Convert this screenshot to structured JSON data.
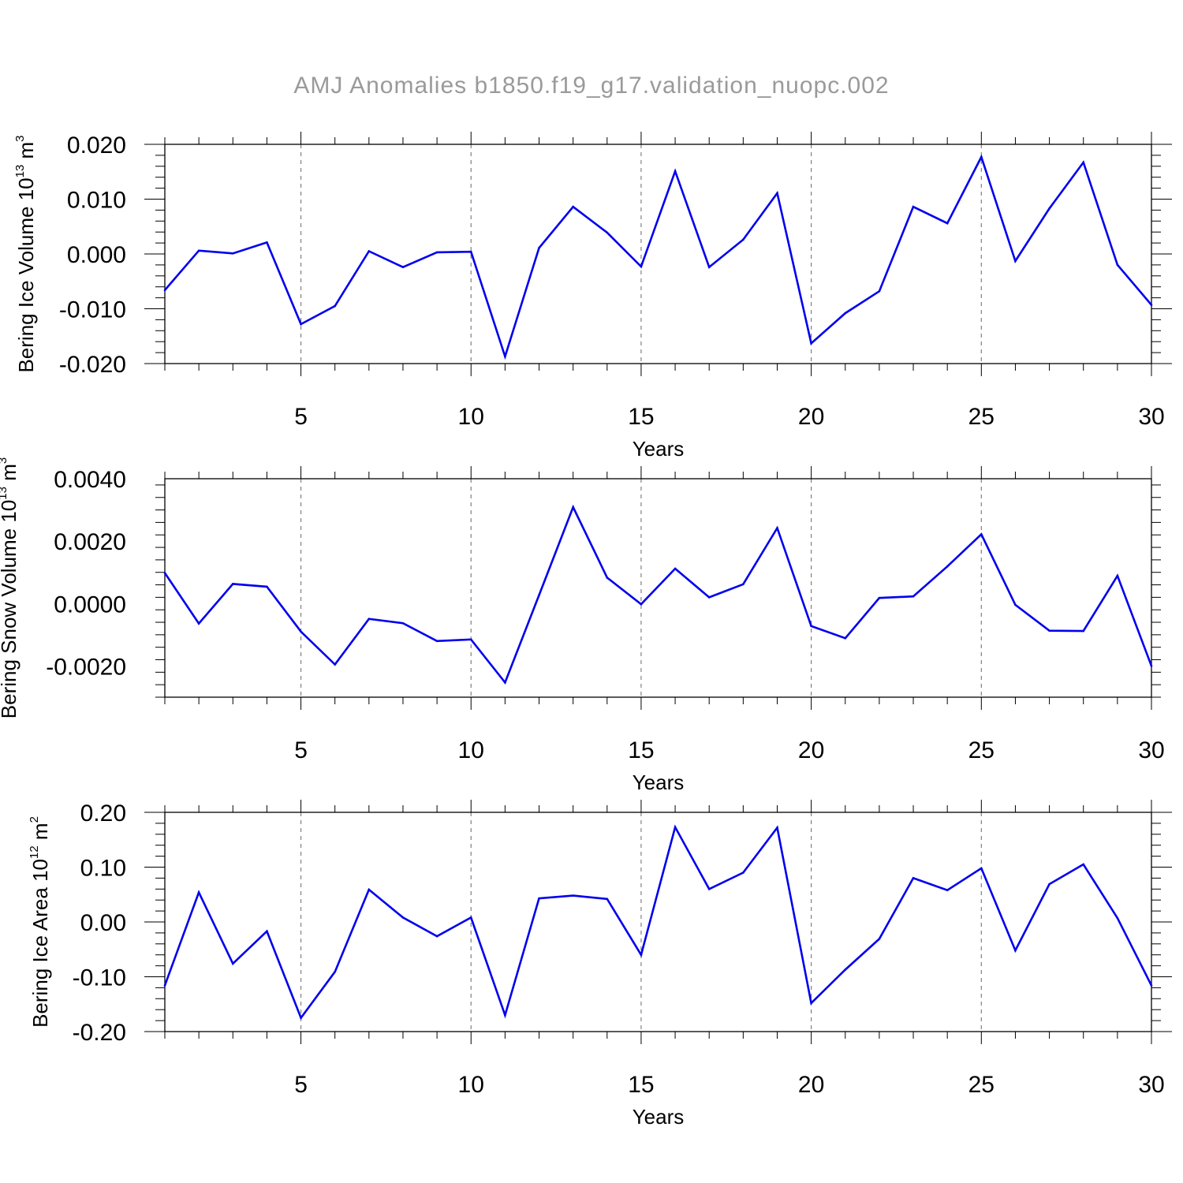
{
  "title": "AMJ Anomalies b1850.f19_g17.validation_nuopc.002",
  "colors": {
    "line": "#0000ee",
    "frame": "#000000",
    "grid": "#808080",
    "title": "#9a9a9a"
  },
  "chart_data": [
    {
      "type": "line",
      "ylabel": {
        "base": "Bering Ice Volume 10",
        "exponent": "13",
        "unit": " m",
        "unit_exponent": "3"
      },
      "xlabel": "Years",
      "xlim": [
        1,
        30
      ],
      "ylim": [
        -0.02,
        0.02
      ],
      "xticks": [
        "5",
        "10",
        "15",
        "20",
        "25",
        "30"
      ],
      "yticks": [
        "0.020",
        "0.010",
        "0.000",
        "-0.010",
        "-0.020"
      ],
      "ytick_values": [
        0.02,
        0.01,
        0.0,
        -0.01,
        -0.02
      ],
      "grid_x": [
        5,
        10,
        15,
        20,
        25
      ],
      "series": [
        {
          "name": "Bering Ice Volume",
          "x": [
            1,
            2,
            3,
            4,
            5,
            6,
            7,
            8,
            9,
            10,
            11,
            12,
            13,
            14,
            15,
            16,
            17,
            18,
            19,
            20,
            21,
            22,
            23,
            24,
            25,
            26,
            27,
            28,
            29,
            30
          ],
          "values": [
            -0.0066,
            0.0006,
            0.0001,
            0.0021,
            -0.0128,
            -0.0095,
            0.0005,
            -0.0024,
            0.0003,
            0.0004,
            -0.0187,
            0.0011,
            0.0086,
            0.0039,
            -0.0023,
            0.0151,
            -0.0024,
            0.0026,
            0.0111,
            -0.0163,
            -0.0108,
            -0.0068,
            0.0086,
            0.0056,
            0.0177,
            -0.0013,
            0.0083,
            0.0167,
            -0.002,
            -0.0093
          ]
        }
      ]
    },
    {
      "type": "line",
      "ylabel": {
        "base": "Bering Snow Volume 10",
        "exponent": "13",
        "unit": " m",
        "unit_exponent": "3"
      },
      "xlabel": "Years",
      "xlim": [
        1,
        30
      ],
      "ylim": [
        -0.003,
        0.004
      ],
      "xticks": [
        "5",
        "10",
        "15",
        "20",
        "25",
        "30"
      ],
      "yticks": [
        "0.0040",
        "0.0020",
        "0.0000",
        "-0.0020"
      ],
      "ytick_values": [
        0.004,
        0.002,
        0.0,
        -0.002
      ],
      "grid_x": [
        5,
        10,
        15,
        20,
        25
      ],
      "series": [
        {
          "name": "Bering Snow Volume",
          "x": [
            1,
            2,
            3,
            4,
            5,
            6,
            7,
            8,
            9,
            10,
            11,
            12,
            13,
            14,
            15,
            16,
            17,
            18,
            19,
            20,
            21,
            22,
            23,
            24,
            25,
            26,
            27,
            28,
            29,
            30
          ],
          "values": [
            0.00098,
            -0.00064,
            0.00063,
            0.00054,
            -0.0009,
            -0.00195,
            -0.00049,
            -0.00063,
            -0.0012,
            -0.00115,
            -0.00253,
            0.00027,
            0.00309,
            0.00083,
            -2e-05,
            0.00112,
            0.0002,
            0.00062,
            0.00242,
            -0.00072,
            -0.00111,
            0.00018,
            0.00023,
            0.00119,
            0.00222,
            -4e-05,
            -0.00087,
            -0.00088,
            0.00089,
            -0.002
          ]
        }
      ]
    },
    {
      "type": "line",
      "ylabel": {
        "base": "Bering Ice Area 10",
        "exponent": "12",
        "unit": " m",
        "unit_exponent": "2"
      },
      "xlabel": "Years",
      "xlim": [
        1,
        30
      ],
      "ylim": [
        -0.2,
        0.2
      ],
      "xticks": [
        "5",
        "10",
        "15",
        "20",
        "25",
        "30"
      ],
      "yticks": [
        "0.20",
        "0.10",
        "0.00",
        "-0.10",
        "-0.20"
      ],
      "ytick_values": [
        0.2,
        0.1,
        0.0,
        -0.1,
        -0.2
      ],
      "grid_x": [
        5,
        10,
        15,
        20,
        25
      ],
      "series": [
        {
          "name": "Bering Ice Area",
          "x": [
            1,
            2,
            3,
            4,
            5,
            6,
            7,
            8,
            9,
            10,
            11,
            12,
            13,
            14,
            15,
            16,
            17,
            18,
            19,
            20,
            21,
            22,
            23,
            24,
            25,
            26,
            27,
            28,
            29,
            30
          ],
          "values": [
            -0.116,
            0.054,
            -0.076,
            -0.017,
            -0.175,
            -0.091,
            0.059,
            0.008,
            -0.026,
            0.008,
            -0.17,
            0.043,
            0.048,
            0.042,
            -0.06,
            0.173,
            0.06,
            0.09,
            0.172,
            -0.148,
            -0.087,
            -0.031,
            0.08,
            0.058,
            0.098,
            -0.052,
            0.069,
            0.105,
            0.007,
            -0.116
          ]
        }
      ]
    }
  ]
}
